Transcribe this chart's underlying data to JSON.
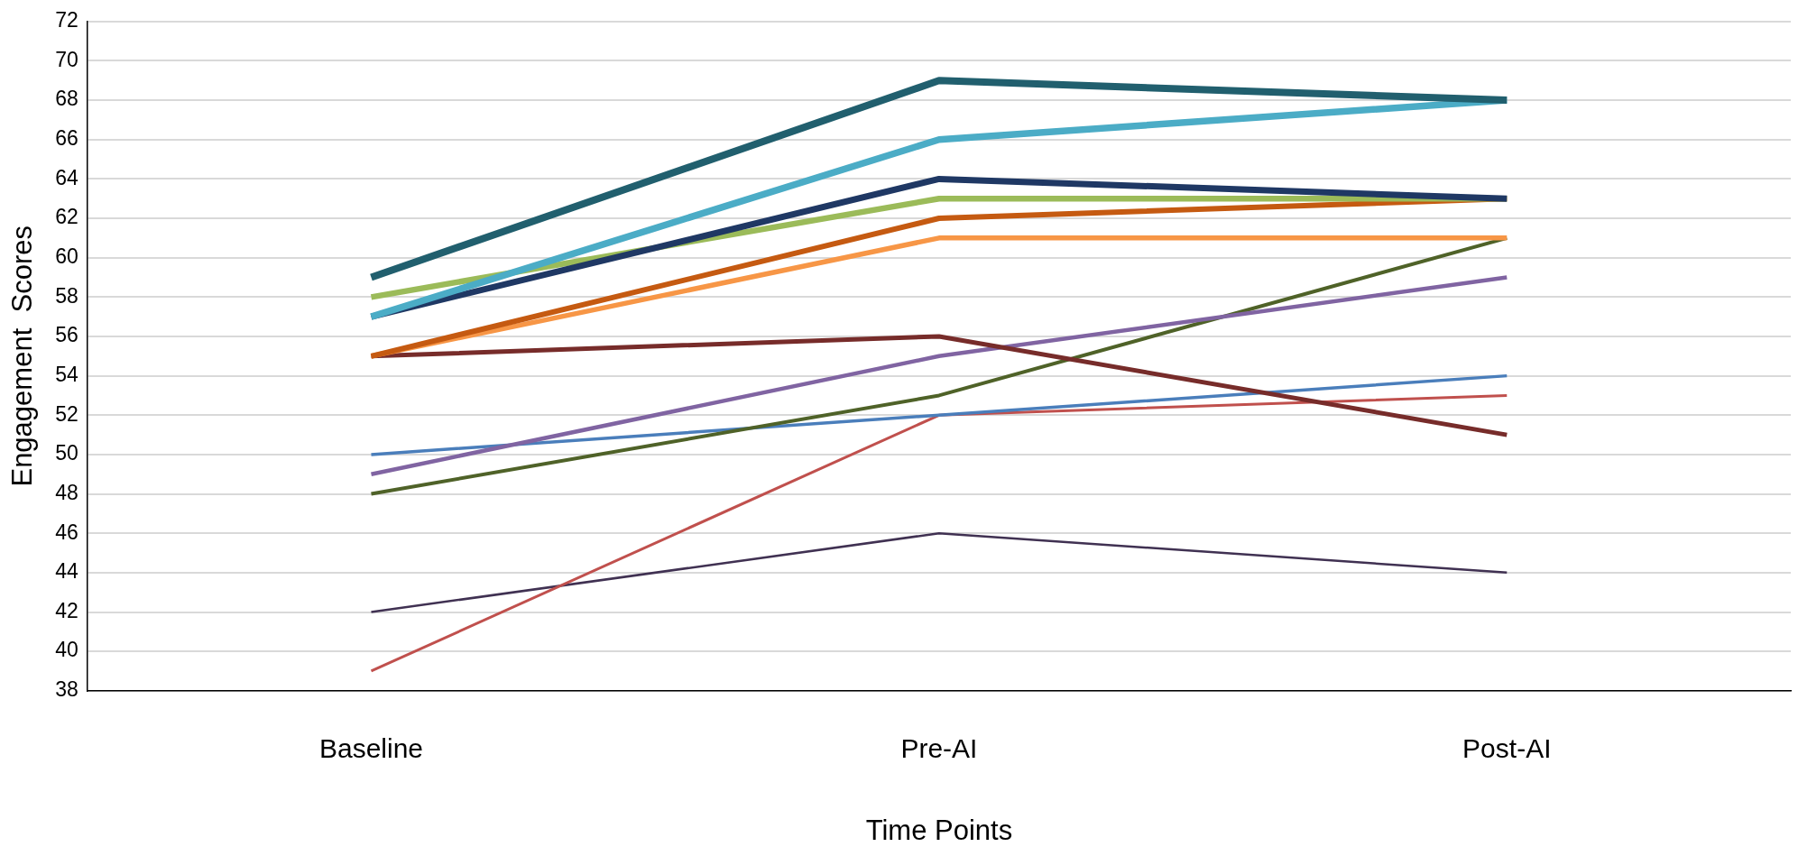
{
  "chart_data": {
    "type": "line",
    "xlabel": "Time Points",
    "ylabel": "Engagement  Scores",
    "categories": [
      "Baseline",
      "Pre-AI",
      "Post-AI"
    ],
    "series": [
      {
        "color": "#215f6e",
        "values": [
          59,
          69,
          68
        ]
      },
      {
        "color": "#4bacc6",
        "values": [
          57,
          66,
          68
        ]
      },
      {
        "color": "#1f3864",
        "values": [
          57,
          64,
          63
        ]
      },
      {
        "color": "#9bbb59",
        "values": [
          58,
          63,
          63
        ]
      },
      {
        "color": "#c55a11",
        "values": [
          55,
          62,
          63
        ]
      },
      {
        "color": "#f79646",
        "values": [
          55,
          61,
          61
        ]
      },
      {
        "color": "#772c2a",
        "values": [
          55,
          56,
          51
        ]
      },
      {
        "color": "#8064a2",
        "values": [
          49,
          55,
          59
        ]
      },
      {
        "color": "#4f6228",
        "values": [
          48,
          53,
          61
        ]
      },
      {
        "color": "#4a7ebb",
        "values": [
          50,
          52,
          54
        ]
      },
      {
        "color": "#c0504d",
        "values": [
          39,
          52,
          53
        ]
      },
      {
        "color": "#403152",
        "values": [
          42,
          46,
          44
        ]
      }
    ],
    "ylim": [
      38,
      72
    ],
    "yticks": [
      38,
      40,
      42,
      44,
      46,
      48,
      50,
      52,
      54,
      56,
      58,
      60,
      62,
      64,
      66,
      68,
      70,
      72
    ],
    "grid": "y",
    "legend": false,
    "marker": "none",
    "line_style": "solid"
  }
}
